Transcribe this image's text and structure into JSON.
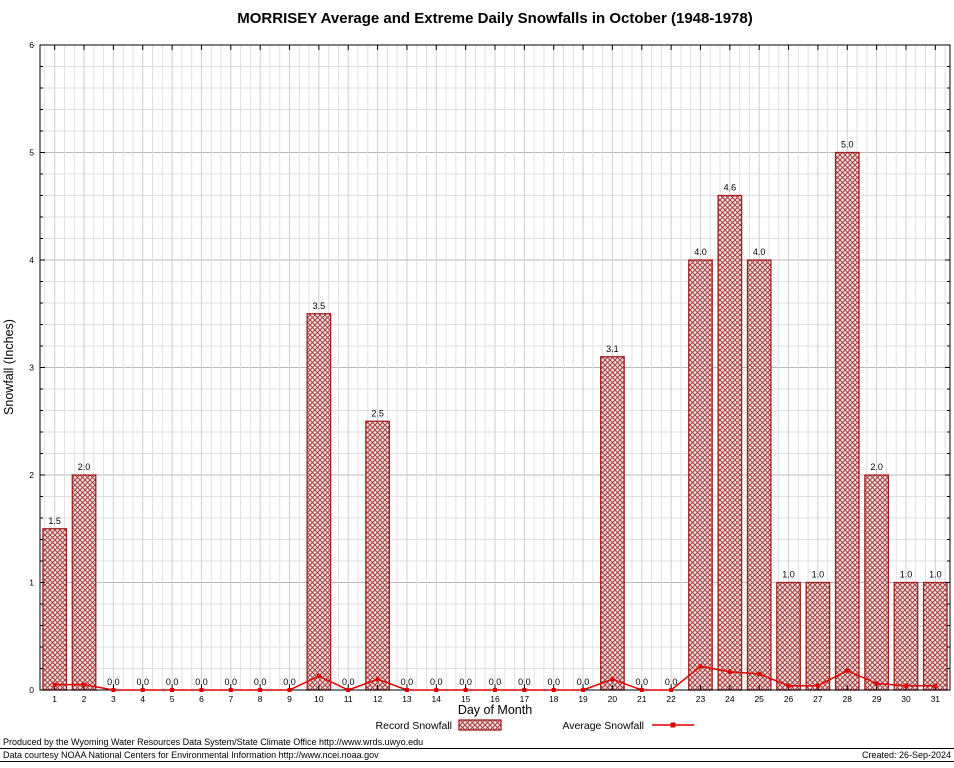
{
  "chart_data": {
    "type": "bar",
    "title": "MORRISEY Average and Extreme Daily Snowfalls in October (1948-1978)",
    "xlabel": "Day of Month",
    "ylabel": "Snowfall (Inches)",
    "ylim": [
      0,
      6
    ],
    "y_ticks": [
      0,
      1,
      2,
      3,
      4,
      5,
      6
    ],
    "grid": true,
    "legend_position": "bottom",
    "categories": [
      1,
      2,
      3,
      4,
      5,
      6,
      7,
      8,
      9,
      10,
      11,
      12,
      13,
      14,
      15,
      16,
      17,
      18,
      19,
      20,
      21,
      22,
      23,
      24,
      25,
      26,
      27,
      28,
      29,
      30,
      31
    ],
    "series": [
      {
        "name": "Record Snowfall",
        "type": "bar",
        "values": [
          1.5,
          2.0,
          0,
          0,
          0,
          0,
          0,
          0,
          0,
          3.5,
          0,
          2.5,
          0,
          0,
          0,
          0,
          0,
          0,
          0,
          3.1,
          0,
          0,
          4.0,
          4.6,
          4.0,
          1.0,
          1.0,
          5.0,
          2.0,
          1.0,
          1.0
        ],
        "labels": [
          "1.5",
          "2.0",
          "0.0",
          "0.0",
          "0.0",
          "0.0",
          "0.0",
          "0.0",
          "0.0",
          "3.5",
          "0.0",
          "2.5",
          "0.0",
          "0.0",
          "0.0",
          "0.0",
          "0.0",
          "0.0",
          "0.0",
          "3.1",
          "0.0",
          "0.0",
          "4.0",
          "4.6",
          "4.0",
          "1.0",
          "1.0",
          "5.0",
          "2.0",
          "1.0",
          "1.0"
        ]
      },
      {
        "name": "Average Snowfall",
        "type": "line",
        "values": [
          0.05,
          0.05,
          0,
          0,
          0,
          0,
          0,
          0,
          0,
          0.13,
          0,
          0.1,
          0,
          0,
          0,
          0,
          0,
          0,
          0,
          0.1,
          0,
          0,
          0.22,
          0.17,
          0.15,
          0.04,
          0.04,
          0.18,
          0.06,
          0.04,
          0.04
        ]
      }
    ]
  },
  "footer": {
    "line1": "Produced by the Wyoming Water Resources Data System/State Climate Office http://www.wrds.uwyo.edu",
    "line2": "Data courtesy NOAA National Centers for Environmental Information http://www.ncei.noaa.gov",
    "created": "Created: 26-Sep-2024"
  },
  "colors": {
    "bar_outline": "#a02020",
    "bar_hatch": "#a04040",
    "bar_fill_bg": "#f6e2e2",
    "average_line": "#e00000",
    "grid_minor": "#e0e0e0",
    "grid_major": "#b8b8b8"
  }
}
